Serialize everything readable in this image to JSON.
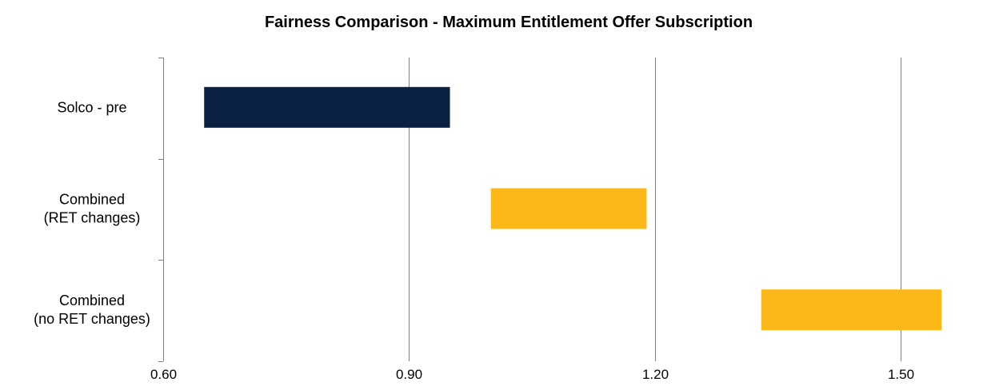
{
  "chart_data": {
    "type": "bar",
    "orientation": "horizontal",
    "subtype": "floating-range",
    "title": "Fairness Comparison  - Maximum  Entitlement Offer Subscription",
    "xlabel": "",
    "ylabel": "",
    "xlim": [
      0.6,
      1.6
    ],
    "x_ticks": [
      "0.60",
      "0.90",
      "1.20",
      "1.50"
    ],
    "x_tick_values": [
      0.6,
      0.9,
      1.2,
      1.5
    ],
    "grid": "vertical major gridlines",
    "legend": "none",
    "categories": [
      [
        "Solco - pre"
      ],
      [
        "Combined",
        "(RET changes)"
      ],
      [
        "Combined",
        "(no RET changes)"
      ]
    ],
    "ranges": [
      {
        "low": 0.65,
        "high": 0.95,
        "color": "#0b2143"
      },
      {
        "low": 1.0,
        "high": 1.19,
        "color": "#fbb818"
      },
      {
        "low": 1.33,
        "high": 1.55,
        "color": "#fbb818"
      }
    ],
    "colors": {
      "gridline": "#808080",
      "axis": "#808080"
    }
  }
}
